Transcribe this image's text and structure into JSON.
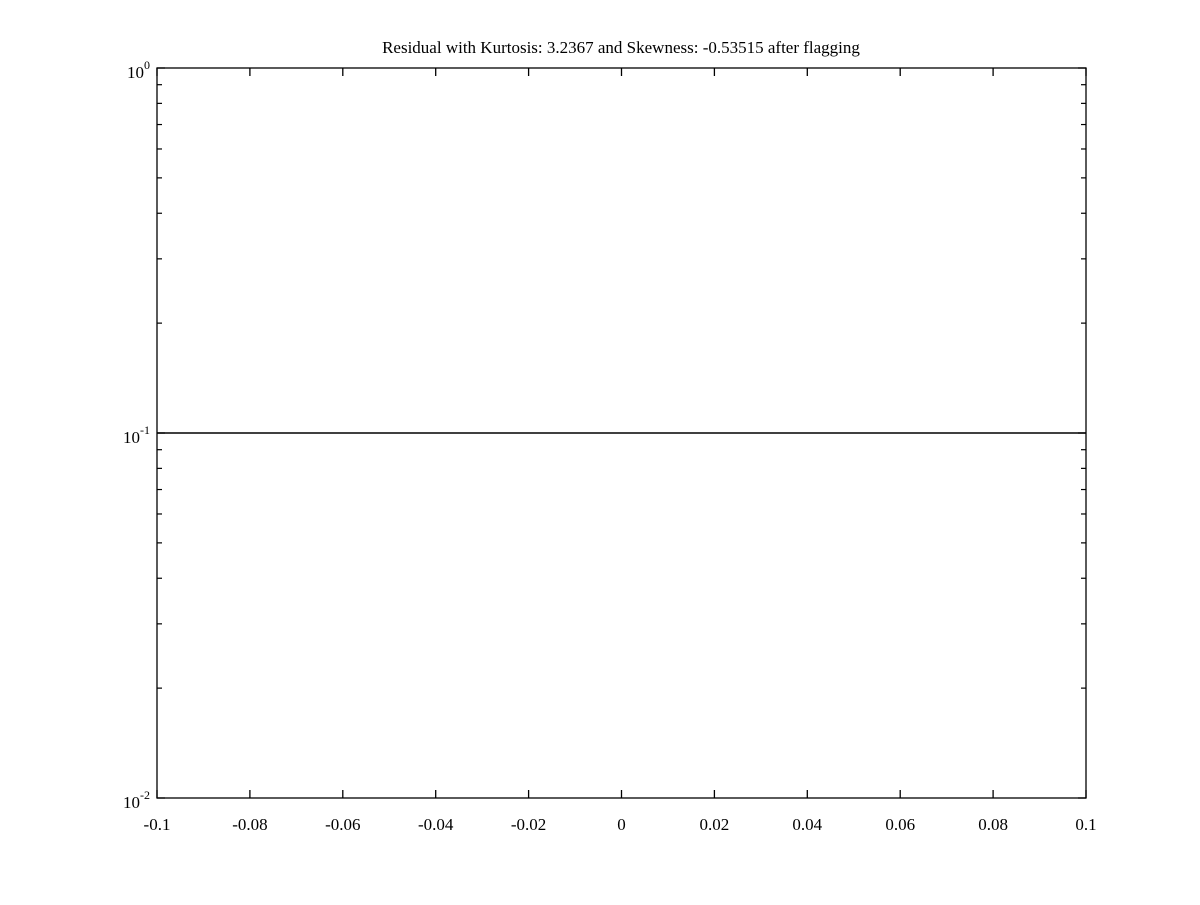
{
  "figure": {
    "background": "#ffffff",
    "line_color": "#000000"
  },
  "chart_data": {
    "type": "line",
    "title": "Residual with Kurtosis: 3.2367 and Skewness: -0.53515 after flagging",
    "xlabel": "",
    "ylabel": "",
    "xlim": [
      -0.1,
      0.1
    ],
    "x_ticks": [
      -0.1,
      -0.08,
      -0.06,
      -0.04,
      -0.02,
      0,
      0.02,
      0.04,
      0.06,
      0.08,
      0.1
    ],
    "x_tick_labels": [
      "-0.1",
      "-0.08",
      "-0.06",
      "-0.04",
      "-0.02",
      "0",
      "0.02",
      "0.04",
      "0.06",
      "0.08",
      "0.1"
    ],
    "y_scale": "log10",
    "ylim": [
      0.01,
      1
    ],
    "y_ticks": [
      {
        "value": 1,
        "base": "10",
        "exponent": "0"
      },
      {
        "value": 0.1,
        "base": "10",
        "exponent": "-1"
      },
      {
        "value": 0.01,
        "base": "10",
        "exponent": "-2"
      }
    ],
    "y_minor_ticks": true,
    "grid": false,
    "box": true,
    "tick_direction": "in",
    "legend": null,
    "series": [
      {
        "name": "residual",
        "color": "#000000",
        "x": [
          -0.1,
          0.1
        ],
        "y": [
          0.1,
          0.1
        ]
      }
    ]
  }
}
